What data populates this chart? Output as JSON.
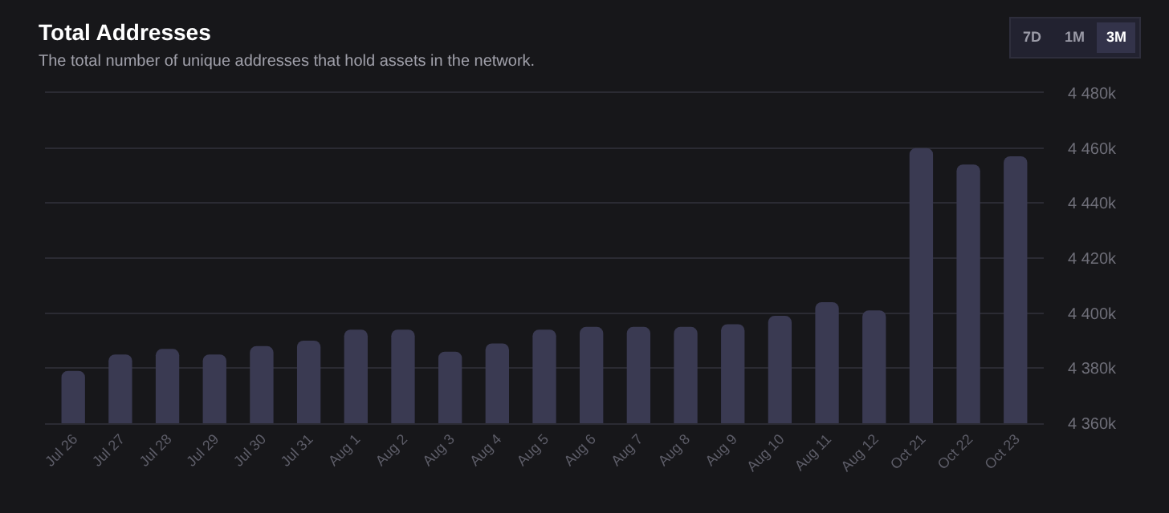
{
  "chart_data": {
    "type": "bar",
    "title": "Total Addresses",
    "subtitle": "The total number of unique addresses that hold assets in the network.",
    "annotations": [
      "7D",
      "1M",
      "3M"
    ],
    "categories": [
      "Jul 26",
      "Jul 27",
      "Jul 28",
      "Jul 29",
      "Jul 30",
      "Jul 31",
      "Aug 1",
      "Aug 2",
      "Aug 3",
      "Aug 4",
      "Aug 5",
      "Aug 6",
      "Aug 7",
      "Aug 8",
      "Aug 9",
      "Aug 10",
      "Aug 11",
      "Aug 12",
      "Oct 21",
      "Oct 22",
      "Oct 23"
    ],
    "values": [
      4379,
      4385,
      4387,
      4385,
      4388,
      4390,
      4394,
      4394,
      4386,
      4389,
      4394,
      4395,
      4395,
      4395,
      4396,
      4399,
      4404,
      4401,
      4460,
      4454,
      4457
    ],
    "color": "#3a3a52",
    "ylim": [
      4360,
      4480
    ],
    "yticks": [
      {
        "value": 4360,
        "label": "4 360k"
      },
      {
        "value": 4380,
        "label": "4 380k"
      },
      {
        "value": 4400,
        "label": "4 400k"
      },
      {
        "value": 4420,
        "label": "4 420k"
      },
      {
        "value": 4440,
        "label": "4 440k"
      },
      {
        "value": 4460,
        "label": "4 460k"
      },
      {
        "value": 4480,
        "label": "4 480k"
      }
    ],
    "grid": "y"
  }
}
